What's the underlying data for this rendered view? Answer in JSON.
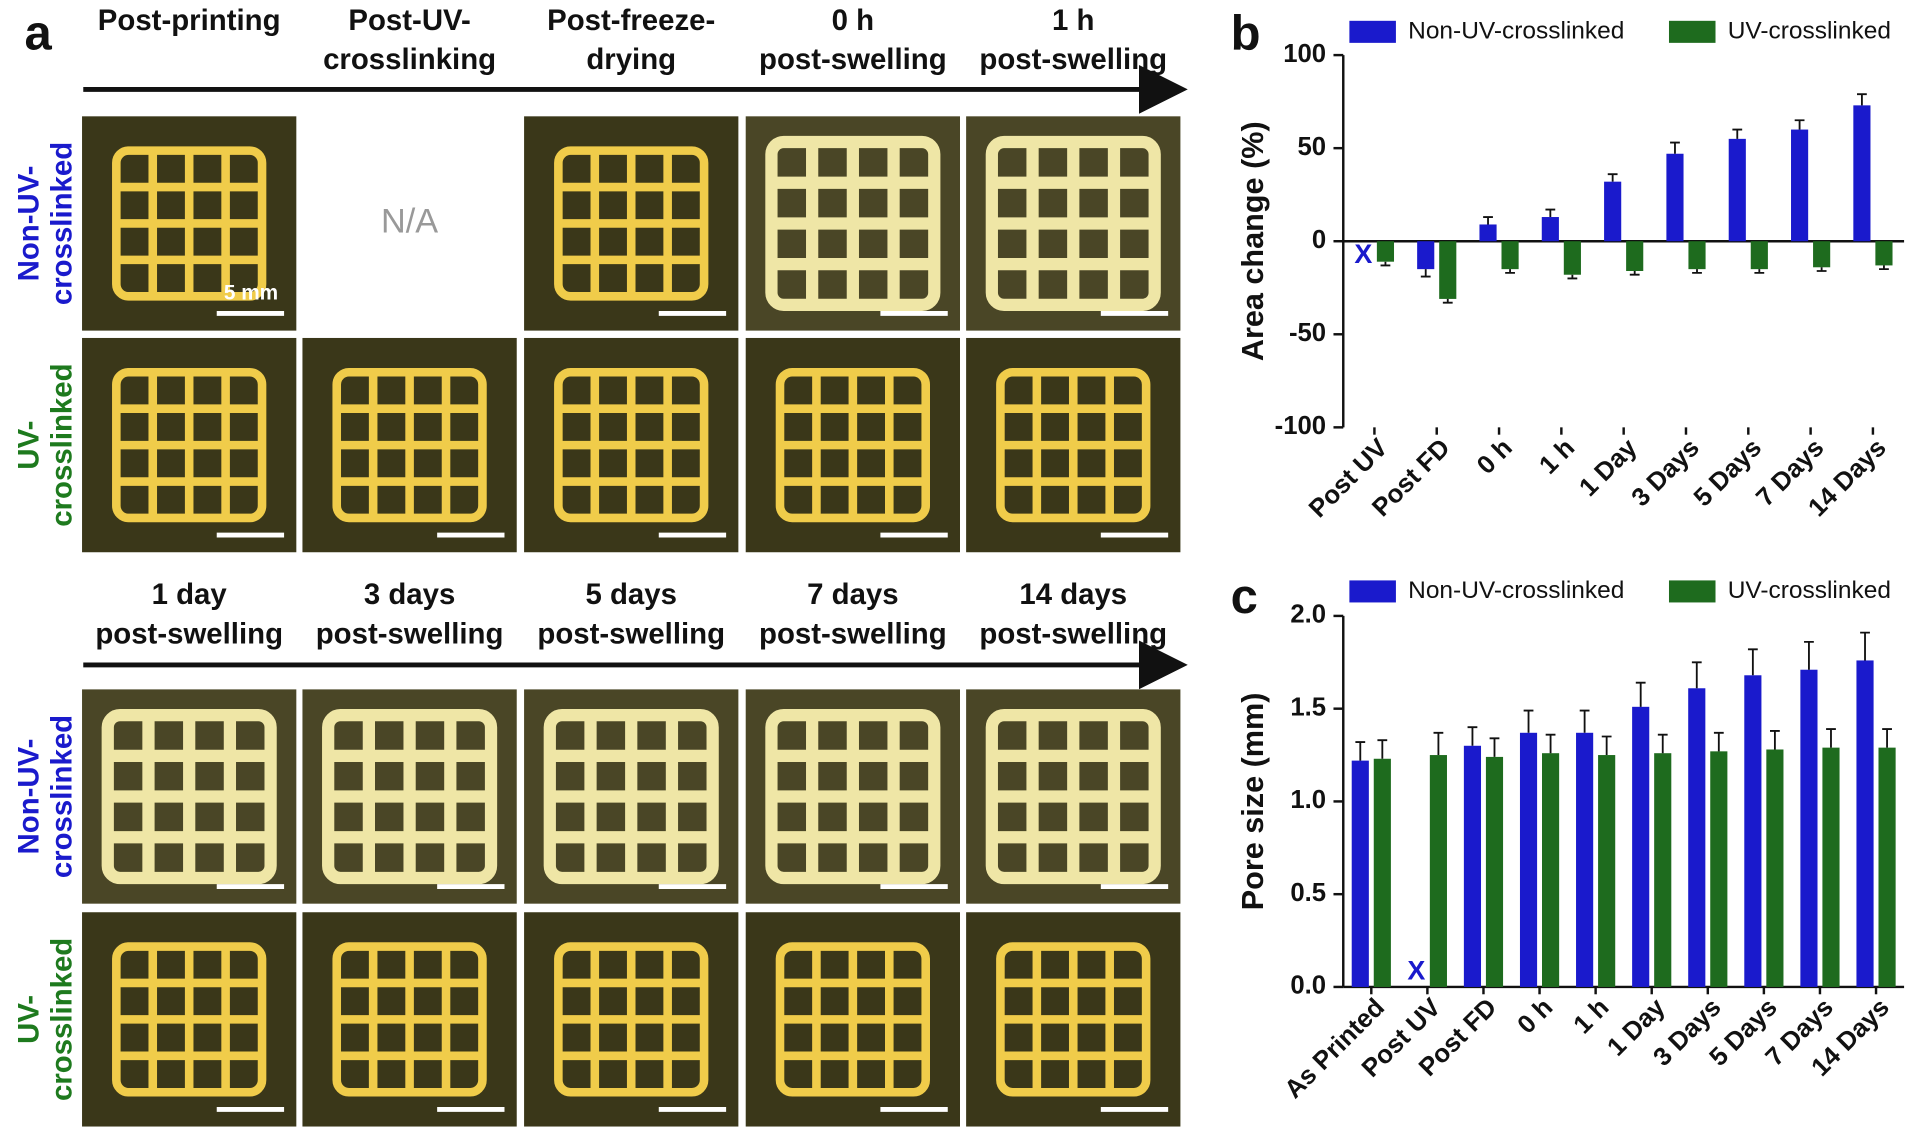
{
  "panel_a": {
    "letter": "a",
    "top_headers": [
      [
        "Post-printing"
      ],
      [
        "Post-UV-",
        "crosslinking"
      ],
      [
        "Post-freeze-",
        "drying"
      ],
      [
        "0 h",
        "post-swelling"
      ],
      [
        "1 h",
        "post-swelling"
      ]
    ],
    "bottom_headers": [
      [
        "1 day",
        "post-swelling"
      ],
      [
        "3 days",
        "post-swelling"
      ],
      [
        "5 days",
        "post-swelling"
      ],
      [
        "7 days",
        "post-swelling"
      ],
      [
        "14 days",
        "post-swelling"
      ]
    ],
    "row_labels": [
      {
        "lines": [
          "Non-UV-",
          "crosslinked"
        ],
        "color": "#1a1acc"
      },
      {
        "lines": [
          "UV-",
          "crosslinked"
        ],
        "color": "#1e7a1e"
      }
    ],
    "na_text": "N/A",
    "scale_label": "5 mm"
  },
  "chart_data": [
    {
      "type": "bar",
      "letter": "b",
      "ylabel": "Area change (%)",
      "categories": [
        "Post UV",
        "Post FD",
        "0 h",
        "1 h",
        "1 Day",
        "3 Days",
        "5 Days",
        "7 Days",
        "14 Days"
      ],
      "series": [
        {
          "name": "Non-UV-crosslinked",
          "color": "#1a1acc",
          "values": [
            null,
            -15,
            9,
            13,
            32,
            47,
            55,
            60,
            73
          ],
          "errors": [
            null,
            4,
            4,
            4,
            4,
            6,
            5,
            5,
            6
          ]
        },
        {
          "name": "UV-crosslinked",
          "color": "#1e6b1e",
          "values": [
            -11,
            -31,
            -15,
            -18,
            -16,
            -15,
            -15,
            -14,
            -13
          ],
          "errors": [
            2,
            2,
            2,
            2,
            2,
            2,
            2,
            2,
            2
          ]
        }
      ],
      "na_label": "X",
      "ylim": [
        -100,
        100
      ],
      "yticks": [
        -100,
        -50,
        0,
        50,
        100
      ]
    },
    {
      "type": "bar",
      "letter": "c",
      "ylabel": "Pore size (mm)",
      "categories": [
        "As Printed",
        "Post UV",
        "Post FD",
        "0 h",
        "1 h",
        "1 Day",
        "3 Days",
        "5 Days",
        "7 Days",
        "14 Days"
      ],
      "series": [
        {
          "name": "Non-UV-crosslinked",
          "color": "#1a1acc",
          "values": [
            1.22,
            null,
            1.3,
            1.37,
            1.37,
            1.51,
            1.61,
            1.68,
            1.71,
            1.76
          ],
          "errors": [
            0.1,
            null,
            0.1,
            0.12,
            0.12,
            0.13,
            0.14,
            0.14,
            0.15,
            0.15
          ]
        },
        {
          "name": "UV-crosslinked",
          "color": "#1e6b1e",
          "values": [
            1.23,
            1.25,
            1.24,
            1.26,
            1.25,
            1.26,
            1.27,
            1.28,
            1.29,
            1.29
          ],
          "errors": [
            0.1,
            0.12,
            0.1,
            0.1,
            0.1,
            0.1,
            0.1,
            0.1,
            0.1,
            0.1
          ]
        }
      ],
      "na_label": "X",
      "ylim": [
        0,
        2
      ],
      "yticks": [
        {
          "value": 0,
          "label": "0.0"
        },
        0.5,
        {
          "value": 1,
          "label": "1.0"
        },
        1.5,
        {
          "value": 2,
          "label": "2.0"
        }
      ]
    }
  ]
}
